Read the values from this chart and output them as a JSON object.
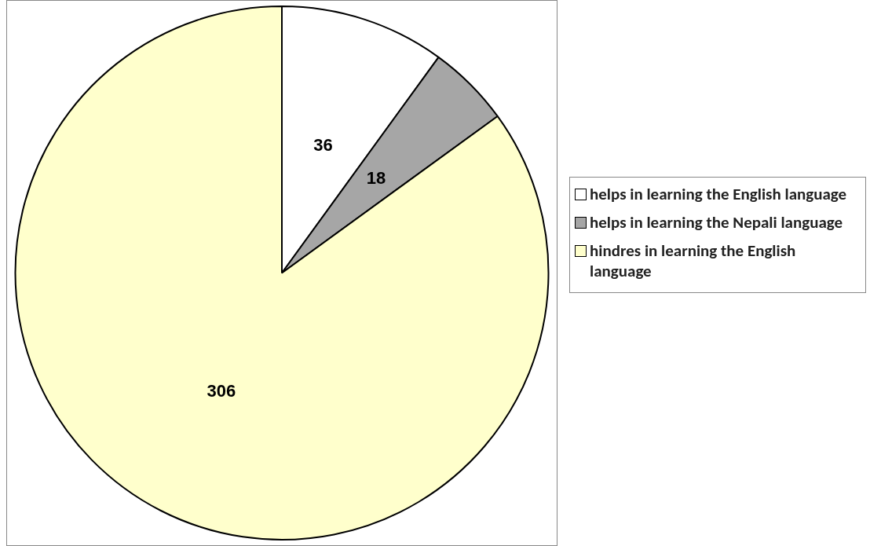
{
  "chart_data": {
    "type": "pie",
    "categories": [
      "helps in learning the English language",
      "helps in learning the Nepali language",
      "hindres in learning the English language"
    ],
    "values": [
      36,
      18,
      306
    ],
    "colors": [
      "#ffffff",
      "#a6a6a6",
      "#ffffcc"
    ],
    "data_labels": true,
    "legend": "right"
  }
}
